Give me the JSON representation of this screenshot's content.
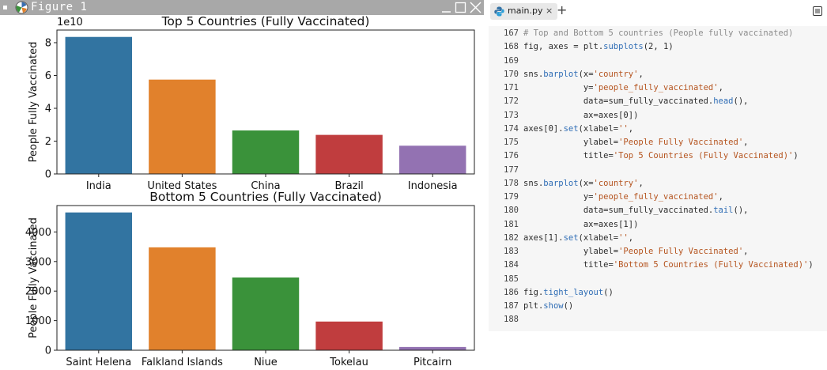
{
  "figure_window": {
    "title": "Figure 1",
    "icons": {
      "menu": "window-menu-icon",
      "app": "app-icon",
      "minimize": "minimize-icon",
      "maximize": "maximize-icon",
      "close": "close-icon"
    }
  },
  "chart_data": [
    {
      "type": "bar",
      "title": "Top 5 Countries (Fully Vaccinated)",
      "xlabel": "",
      "ylabel": "People Fully Vaccinated",
      "offset_label": "1e10",
      "categories": [
        "India",
        "United States",
        "China",
        "Brazil",
        "Indonesia"
      ],
      "values": [
        8.35,
        5.75,
        2.65,
        2.38,
        1.72
      ],
      "ylim": [
        0,
        8.77
      ],
      "yticks": [
        0,
        2,
        4,
        6,
        8
      ],
      "colors": [
        "#3274a1",
        "#e1812c",
        "#3a923a",
        "#c03d3e",
        "#9372b2"
      ]
    },
    {
      "type": "bar",
      "title": "Bottom 5 Countries (Fully Vaccinated)",
      "xlabel": "",
      "ylabel": "People Fully Vaccinated",
      "categories": [
        "Saint Helena",
        "Falkland Islands",
        "Niue",
        "Tokelau",
        "Pitcairn"
      ],
      "values": [
        4660,
        3480,
        2460,
        970,
        110
      ],
      "ylim": [
        0,
        4893
      ],
      "yticks": [
        0,
        1000,
        2000,
        3000,
        4000
      ],
      "colors": [
        "#3274a1",
        "#e1812c",
        "#3a923a",
        "#c03d3e",
        "#9372b2"
      ]
    }
  ],
  "editor": {
    "tab_label": "main.py",
    "tab_close": "×",
    "tab_add": "+",
    "icons": {
      "tab": "python-file-icon",
      "menu": "editor-menu-icon"
    },
    "lines": [
      {
        "num": "167",
        "tokens": [
          [
            "com",
            "# Top and Bottom 5 countries (People fully vaccinated)"
          ]
        ]
      },
      {
        "num": "168",
        "tokens": [
          [
            "pl",
            "fig, axes = plt."
          ],
          [
            "fn",
            "subplots"
          ],
          [
            "pl",
            "(2, 1)"
          ]
        ]
      },
      {
        "num": "169",
        "tokens": []
      },
      {
        "num": "170",
        "tokens": [
          [
            "pl",
            "sns."
          ],
          [
            "fn",
            "barplot"
          ],
          [
            "pl",
            "(x="
          ],
          [
            "str",
            "'country'"
          ],
          [
            "pl",
            ","
          ]
        ]
      },
      {
        "num": "171",
        "tokens": [
          [
            "pl",
            "            y="
          ],
          [
            "str",
            "'people_fully_vaccinated'"
          ],
          [
            "pl",
            ","
          ]
        ]
      },
      {
        "num": "172",
        "tokens": [
          [
            "pl",
            "            data=sum_fully_vaccinated."
          ],
          [
            "fn",
            "head"
          ],
          [
            "pl",
            "(),"
          ]
        ]
      },
      {
        "num": "173",
        "tokens": [
          [
            "pl",
            "            ax=axes[0])"
          ]
        ]
      },
      {
        "num": "174",
        "tokens": [
          [
            "pl",
            "axes[0]."
          ],
          [
            "fn",
            "set"
          ],
          [
            "pl",
            "(xlabel="
          ],
          [
            "str",
            "''"
          ],
          [
            "pl",
            ","
          ]
        ]
      },
      {
        "num": "175",
        "tokens": [
          [
            "pl",
            "            ylabel="
          ],
          [
            "str",
            "'People Fully Vaccinated'"
          ],
          [
            "pl",
            ","
          ]
        ]
      },
      {
        "num": "176",
        "tokens": [
          [
            "pl",
            "            title="
          ],
          [
            "str",
            "'Top 5 Countries (Fully Vaccinated)'"
          ],
          [
            "pl",
            ")"
          ]
        ]
      },
      {
        "num": "177",
        "tokens": []
      },
      {
        "num": "178",
        "tokens": [
          [
            "pl",
            "sns."
          ],
          [
            "fn",
            "barplot"
          ],
          [
            "pl",
            "(x="
          ],
          [
            "str",
            "'country'"
          ],
          [
            "pl",
            ","
          ]
        ]
      },
      {
        "num": "179",
        "tokens": [
          [
            "pl",
            "            y="
          ],
          [
            "str",
            "'people_fully_vaccinated'"
          ],
          [
            "pl",
            ","
          ]
        ]
      },
      {
        "num": "180",
        "tokens": [
          [
            "pl",
            "            data=sum_fully_vaccinated."
          ],
          [
            "fn",
            "tail"
          ],
          [
            "pl",
            "(),"
          ]
        ]
      },
      {
        "num": "181",
        "tokens": [
          [
            "pl",
            "            ax=axes[1])"
          ]
        ]
      },
      {
        "num": "182",
        "tokens": [
          [
            "pl",
            "axes[1]."
          ],
          [
            "fn",
            "set"
          ],
          [
            "pl",
            "(xlabel="
          ],
          [
            "str",
            "''"
          ],
          [
            "pl",
            ","
          ]
        ]
      },
      {
        "num": "183",
        "tokens": [
          [
            "pl",
            "            ylabel="
          ],
          [
            "str",
            "'People Fully Vaccinated'"
          ],
          [
            "pl",
            ","
          ]
        ]
      },
      {
        "num": "184",
        "tokens": [
          [
            "pl",
            "            title="
          ],
          [
            "str",
            "'Bottom 5 Countries (Fully Vaccinated)'"
          ],
          [
            "pl",
            ")"
          ]
        ]
      },
      {
        "num": "185",
        "tokens": []
      },
      {
        "num": "186",
        "tokens": [
          [
            "pl",
            "fig."
          ],
          [
            "fn",
            "tight_layout"
          ],
          [
            "pl",
            "()"
          ]
        ]
      },
      {
        "num": "187",
        "tokens": [
          [
            "pl",
            "plt."
          ],
          [
            "fn",
            "show"
          ],
          [
            "pl",
            "()"
          ]
        ]
      },
      {
        "num": "188",
        "tokens": []
      }
    ]
  }
}
